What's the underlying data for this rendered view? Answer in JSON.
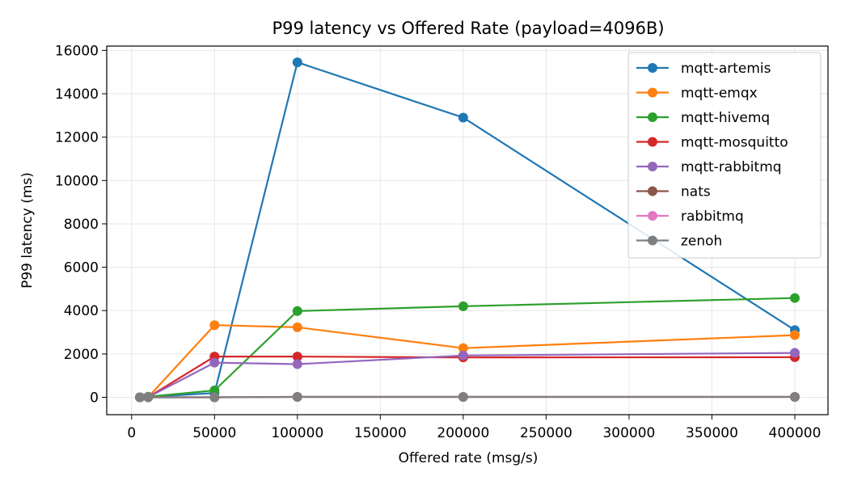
{
  "chart_data": {
    "type": "line",
    "title": "P99 latency vs Offered Rate (payload=4096B)",
    "xlabel": "Offered rate (msg/s)",
    "ylabel": "P99 latency (ms)",
    "xlim": [
      -15000,
      420000
    ],
    "ylim": [
      -800,
      16200
    ],
    "xticks": [
      0,
      50000,
      100000,
      150000,
      200000,
      250000,
      300000,
      350000,
      400000
    ],
    "yticks": [
      0,
      2000,
      4000,
      6000,
      8000,
      10000,
      12000,
      14000,
      16000
    ],
    "grid": true,
    "legend_position": "top-right",
    "series": [
      {
        "name": "mqtt-artemis",
        "color": "#1f77b4",
        "x": [
          5000,
          10000,
          50000,
          100000,
          200000,
          400000
        ],
        "y": [
          0,
          20,
          200,
          15450,
          12900,
          3100
        ]
      },
      {
        "name": "mqtt-emqx",
        "color": "#ff7f0e",
        "x": [
          5000,
          10000,
          50000,
          100000,
          200000,
          400000
        ],
        "y": [
          0,
          10,
          3330,
          3230,
          2270,
          2870
        ]
      },
      {
        "name": "mqtt-hivemq",
        "color": "#2ca02c",
        "x": [
          5000,
          10000,
          50000,
          100000,
          200000,
          400000
        ],
        "y": [
          0,
          30,
          320,
          3980,
          4200,
          4580
        ]
      },
      {
        "name": "mqtt-mosquitto",
        "color": "#d62728",
        "x": [
          5000,
          10000,
          50000,
          100000,
          200000,
          400000
        ],
        "y": [
          0,
          10,
          1880,
          1880,
          1840,
          1850
        ]
      },
      {
        "name": "mqtt-rabbitmq",
        "color": "#9467bd",
        "x": [
          5000,
          10000,
          50000,
          100000,
          200000,
          400000
        ],
        "y": [
          0,
          10,
          1600,
          1530,
          1930,
          2050
        ]
      },
      {
        "name": "nats",
        "color": "#8c564b",
        "x": [
          5000,
          10000,
          50000,
          100000,
          200000,
          400000
        ],
        "y": [
          0,
          0,
          0,
          20,
          20,
          20
        ]
      },
      {
        "name": "rabbitmq",
        "color": "#e377c2",
        "x": [
          5000,
          10000,
          50000,
          100000,
          200000,
          400000
        ],
        "y": [
          0,
          0,
          0,
          20,
          20,
          20
        ]
      },
      {
        "name": "zenoh",
        "color": "#7f7f7f",
        "x": [
          5000,
          10000,
          50000,
          100000,
          200000,
          400000
        ],
        "y": [
          0,
          0,
          0,
          20,
          20,
          20
        ]
      }
    ]
  }
}
